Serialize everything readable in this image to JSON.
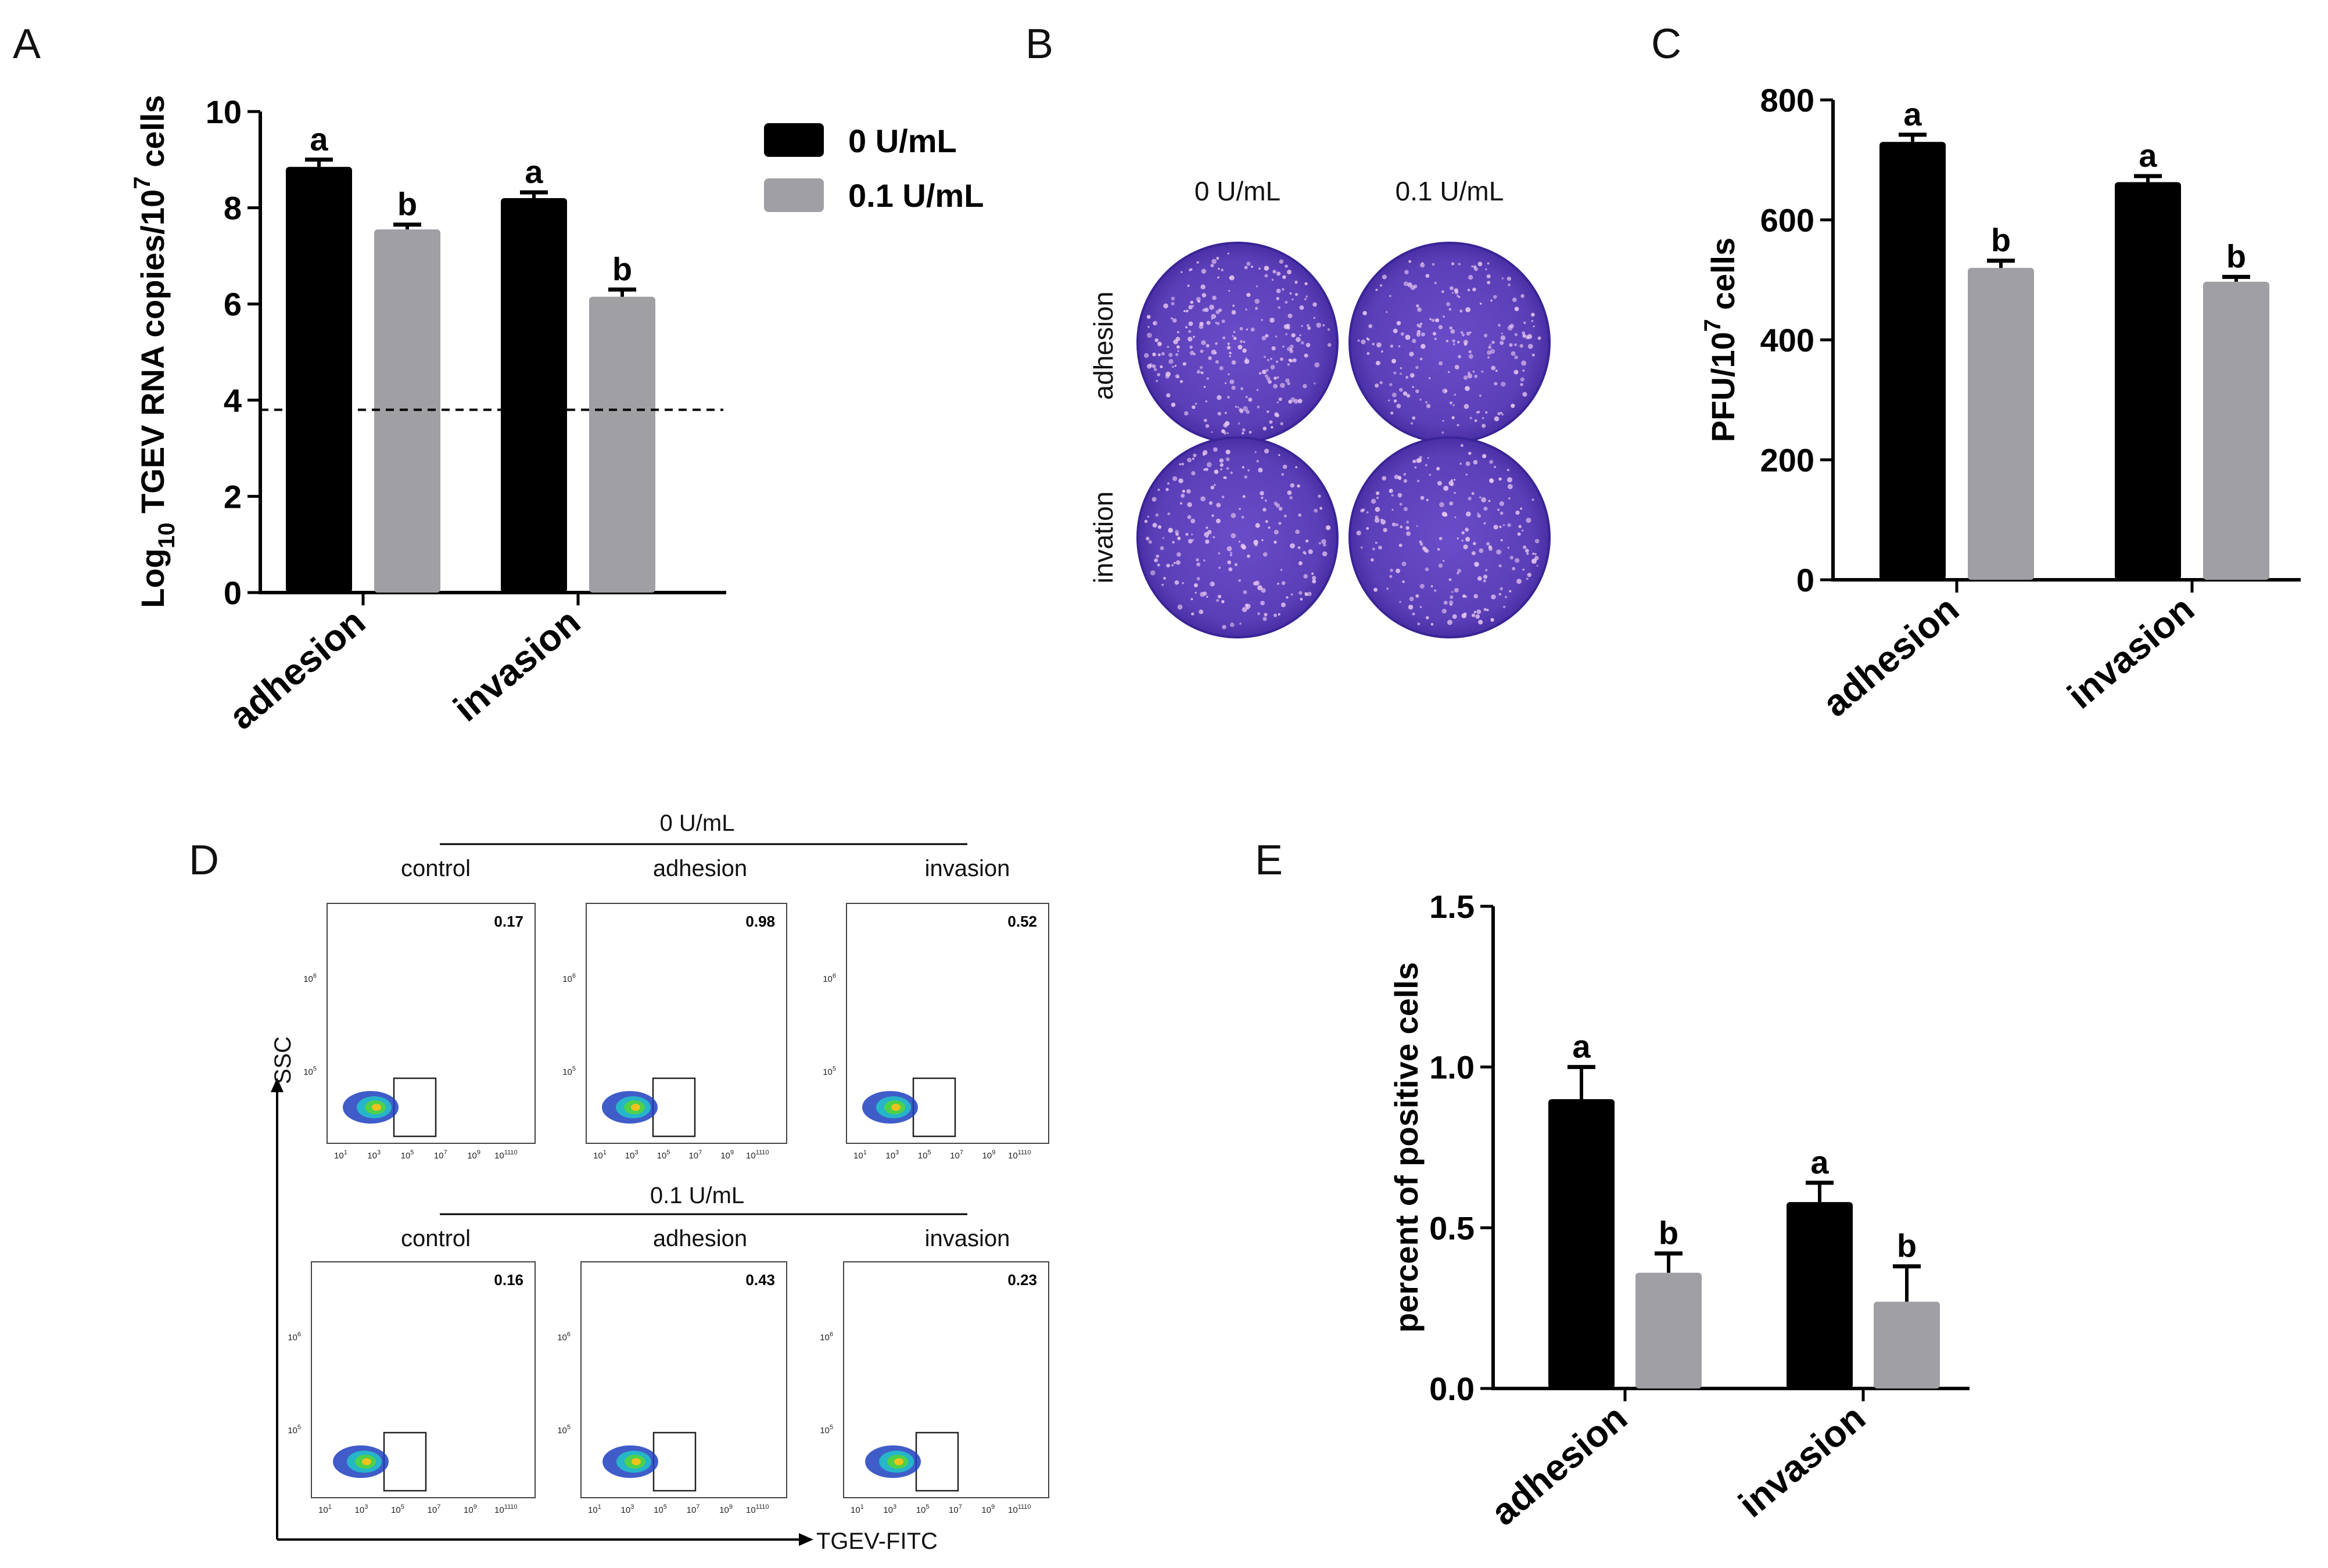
{
  "colors": {
    "series0": "#000000",
    "series1": "#a0a0a4",
    "plate": "#5b3fb8",
    "plateEdge": "#3a2496"
  },
  "chart_data": [
    {
      "panel": "A",
      "type": "bar",
      "categories": [
        "adhesion",
        "invasion"
      ],
      "series": [
        {
          "name": "0 U/mL",
          "values": [
            8.85,
            8.2
          ],
          "errors": [
            0.15,
            0.12
          ],
          "labels": [
            "a",
            "a"
          ]
        },
        {
          "name": "0.1 U/mL",
          "values": [
            7.55,
            6.15
          ],
          "errors": [
            0.1,
            0.15
          ],
          "labels": [
            "b",
            "b"
          ]
        }
      ],
      "ylabel_prefix": "Log",
      "ylabel_sub": "10",
      "ylabel_mid": " TGEV RNA copies/10",
      "ylabel_sup": "7",
      "ylabel_suffix": " cells",
      "ylim": [
        0,
        10
      ],
      "yticks": [
        0,
        2,
        4,
        6,
        8,
        10
      ],
      "dashed_line": 3.8
    },
    {
      "panel": "C",
      "type": "bar",
      "categories": [
        "adhesion",
        "invasion"
      ],
      "series": [
        {
          "name": "0 U/mL",
          "values": [
            730,
            663
          ],
          "errors": [
            12,
            10
          ],
          "labels": [
            "a",
            "a"
          ]
        },
        {
          "name": "0.1 U/mL",
          "values": [
            520,
            497
          ],
          "errors": [
            12,
            8
          ],
          "labels": [
            "b",
            "b"
          ]
        }
      ],
      "ylabel_prefix": "PFU/10",
      "ylabel_sup": "7",
      "ylabel_suffix": " cells",
      "ylim": [
        0,
        800
      ],
      "yticks": [
        0,
        200,
        400,
        600,
        800
      ]
    },
    {
      "panel": "E",
      "type": "bar",
      "categories": [
        "adhesion",
        "invasion"
      ],
      "series": [
        {
          "name": "0 U/mL",
          "values": [
            0.9,
            0.58
          ],
          "errors": [
            0.1,
            0.06
          ],
          "labels": [
            "a",
            "a"
          ]
        },
        {
          "name": "0.1 U/mL",
          "values": [
            0.36,
            0.27
          ],
          "errors": [
            0.06,
            0.11
          ],
          "labels": [
            "b",
            "b"
          ]
        }
      ],
      "ylabel": "percent of positive cells",
      "ylim": [
        0,
        1.5
      ],
      "yticks": [
        "0.0",
        "0.5",
        "1.0",
        "1.5"
      ]
    }
  ],
  "panelA": {
    "letter": "A"
  },
  "panelC": {
    "letter": "C"
  },
  "panelE": {
    "letter": "E"
  },
  "legend": {
    "items": [
      "0 U/mL",
      "0.1 U/mL"
    ]
  },
  "panelB": {
    "letter": "B",
    "col_labels": [
      "0 U/mL",
      "0.1 U/mL"
    ],
    "row_labels": [
      "adhesion",
      "invation"
    ]
  },
  "panelD": {
    "letter": "D",
    "groups": [
      {
        "title": "0 U/mL",
        "columns": [
          "control",
          "adhesion",
          "invasion"
        ],
        "values": [
          "0.17",
          "0.98",
          "0.52"
        ]
      },
      {
        "title": "0.1 U/mL",
        "columns": [
          "control",
          "adhesion",
          "invasion"
        ],
        "values": [
          "0.16",
          "0.43",
          "0.23"
        ]
      }
    ],
    "y_axis": "SSC",
    "x_axis": "TGEV-FITC",
    "y_ticks": [
      "10",
      "10"
    ],
    "y_tick_exps": [
      "6",
      "5"
    ],
    "x_ticks": [
      "10",
      "10",
      "10",
      "10",
      "10"
    ],
    "x_tick_exps": [
      "1",
      "3",
      "5",
      "7",
      "9"
    ],
    "x_tick_last": "10",
    "x_tick_last_exp": "1110",
    "x_tick_last_exp2": "13"
  }
}
